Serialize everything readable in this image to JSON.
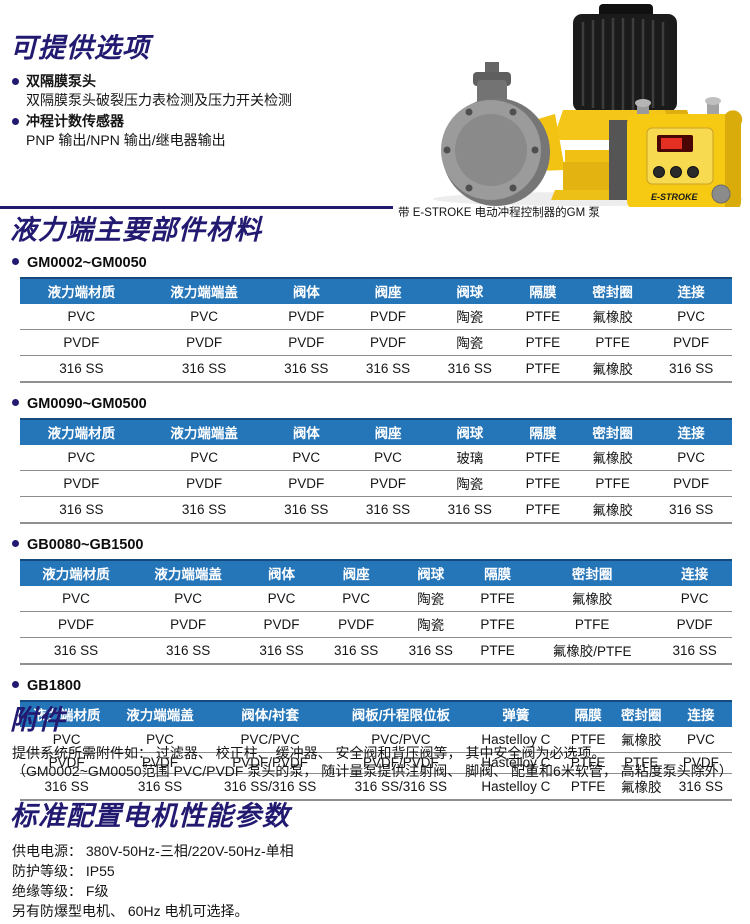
{
  "options": {
    "title": "可提供选项",
    "items": [
      {
        "label": "双隔膜泵头",
        "detail": "双隔膜泵头破裂压力表检测及压力开关检测"
      },
      {
        "label": "冲程计数传感器",
        "detail": "PNP 输出/NPN 输出/继电器输出"
      }
    ]
  },
  "pump": {
    "caption": "带 E-STROKE 电动冲程控制器的GM 泵",
    "brand_label": "E-STROKE"
  },
  "materials": {
    "title": "液力端主要部件材料",
    "tables": [
      {
        "model_range": "GM0002~GM0050",
        "headers": [
          "液力端材质",
          "液力端端盖",
          "阀体",
          "阀座",
          "阀球",
          "隔膜",
          "密封圈",
          "连接"
        ],
        "rows": [
          [
            "PVC",
            "PVC",
            "PVDF",
            "PVDF",
            "陶瓷",
            "PTFE",
            "氟橡胶",
            "PVC"
          ],
          [
            "PVDF",
            "PVDF",
            "PVDF",
            "PVDF",
            "陶瓷",
            "PTFE",
            "PTFE",
            "PVDF"
          ],
          [
            "316 SS",
            "316 SS",
            "316 SS",
            "316 SS",
            "316 SS",
            "PTFE",
            "氟橡胶",
            "316 SS"
          ]
        ]
      },
      {
        "model_range": "GM0090~GM0500",
        "headers": [
          "液力端材质",
          "液力端端盖",
          "阀体",
          "阀座",
          "阀球",
          "隔膜",
          "密封圈",
          "连接"
        ],
        "rows": [
          [
            "PVC",
            "PVC",
            "PVC",
            "PVC",
            "玻璃",
            "PTFE",
            "氟橡胶",
            "PVC"
          ],
          [
            "PVDF",
            "PVDF",
            "PVDF",
            "PVDF",
            "陶瓷",
            "PTFE",
            "PTFE",
            "PVDF"
          ],
          [
            "316 SS",
            "316 SS",
            "316 SS",
            "316 SS",
            "316 SS",
            "PTFE",
            "氟橡胶",
            "316 SS"
          ]
        ]
      },
      {
        "model_range": "GB0080~GB1500",
        "headers": [
          "液力端材质",
          "液力端端盖",
          "阀体",
          "阀座",
          "阀球",
          "隔膜",
          "密封圈",
          "连接"
        ],
        "rows": [
          [
            "PVC",
            "PVC",
            "PVC",
            "PVC",
            "陶瓷",
            "PTFE",
            "氟橡胶",
            "PVC"
          ],
          [
            "PVDF",
            "PVDF",
            "PVDF",
            "PVDF",
            "陶瓷",
            "PTFE",
            "PTFE",
            "PVDF"
          ],
          [
            "316 SS",
            "316 SS",
            "316 SS",
            "316 SS",
            "316 SS",
            "PTFE",
            "氟橡胶/PTFE",
            "316 SS"
          ]
        ]
      },
      {
        "model_range": "GB1800",
        "headers": [
          "液力端材质",
          "液力端端盖",
          "阀体/衬套",
          "阀板/升程限位板",
          "弹簧",
          "隔膜",
          "密封圈",
          "连接"
        ],
        "rows": [
          [
            "PVC",
            "PVC",
            "PVC/PVC",
            "PVC/PVC",
            "Hastelloy C",
            "PTFE",
            "氟橡胶",
            "PVC"
          ],
          [
            "PVDF",
            "PVDF",
            "PVDF/PVDF",
            "PVDF/PVDF",
            "Hastelloy C",
            "PTFE",
            "PTFE",
            "PVDF"
          ],
          [
            "316 SS",
            "316 SS",
            "316 SS/316 SS",
            "316 SS/316 SS",
            "Hastelloy C",
            "PTFE",
            "氟橡胶",
            "316 SS"
          ]
        ]
      }
    ]
  },
  "accessories": {
    "title": "附件",
    "lines": [
      "提供系统所需附件如： 过滤器、 校正柱、 缓冲器、 安全阀和背压阀等， 其中安全阀为必选项。",
      "（GM0002~GM0050范围 PVC/PVDF 泵头的泵， 随计量泵提供注射阀、 脚阀、 配重和6米软管， 高粘度泵头除外）"
    ]
  },
  "motor": {
    "title": "标准配置电机性能参数",
    "lines": [
      "供电电源：  380V-50Hz-三相/220V-50Hz-单相",
      "防护等级：  IP55",
      "绝缘等级：  F级",
      "另有防爆型电机、 60Hz 电机可选择。"
    ]
  },
  "colors": {
    "title_navy": "#221a70",
    "header_blue": "#2575b9",
    "header_dark": "#16497e",
    "pump_yellow": "#f5c61a"
  }
}
